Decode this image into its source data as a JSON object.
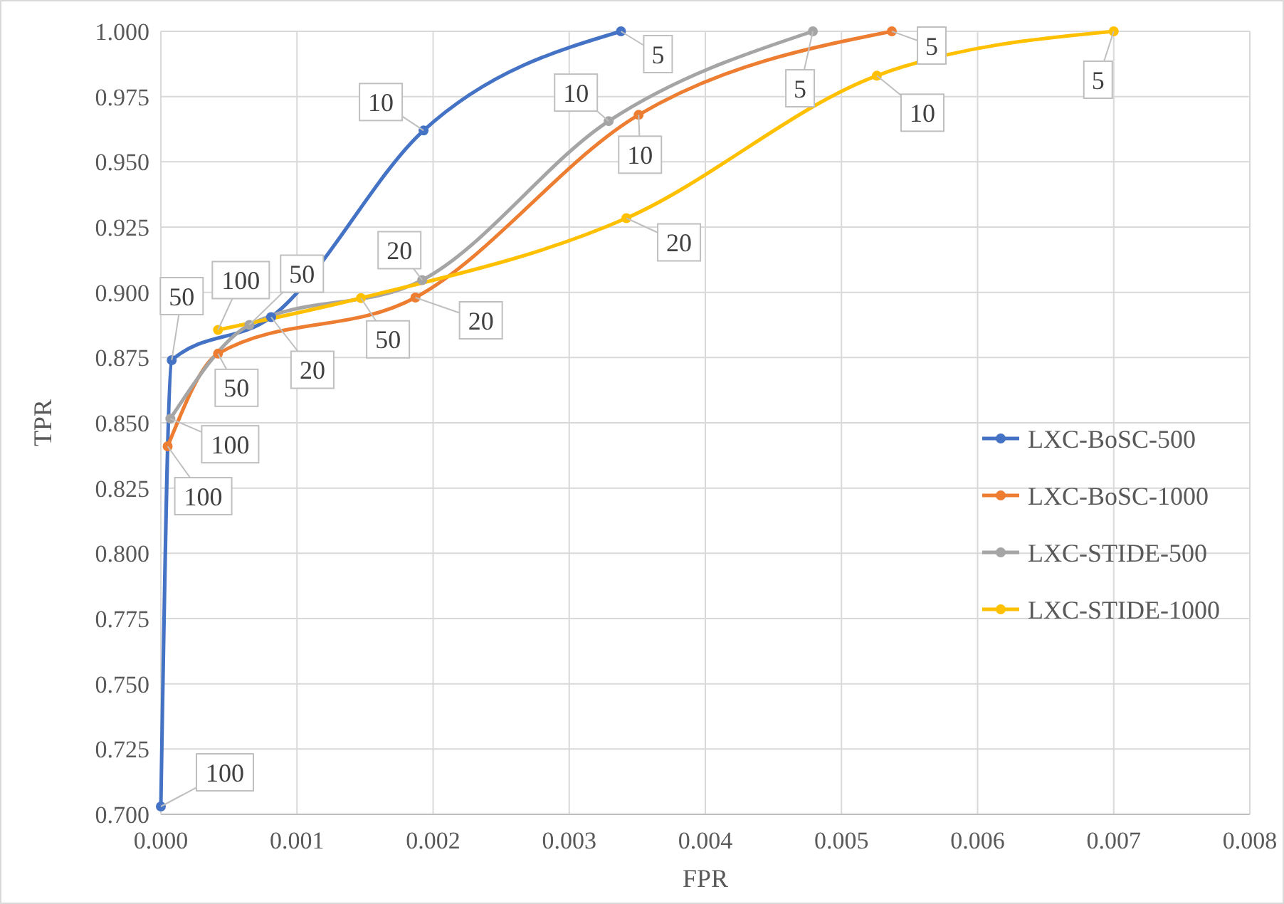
{
  "chart_data": {
    "type": "line",
    "xlabel": "FPR",
    "ylabel": "TPR",
    "xlim": [
      0,
      0.008
    ],
    "xticks": [
      {
        "value": 0,
        "label": "0.000"
      },
      {
        "value": 0.001,
        "label": "0.001"
      },
      {
        "value": 0.002,
        "label": "0.002"
      },
      {
        "value": 0.003,
        "label": "0.003"
      },
      {
        "value": 0.004,
        "label": "0.004"
      },
      {
        "value": 0.005,
        "label": "0.005"
      },
      {
        "value": 0.006,
        "label": "0.006"
      },
      {
        "value": 0.007,
        "label": "0.007"
      },
      {
        "value": 0.008,
        "label": "0.008"
      }
    ],
    "ylim": [
      0.7,
      1
    ],
    "yticks": [
      {
        "value": 0.7,
        "label": "0.700"
      },
      {
        "value": 0.725,
        "label": "0.725"
      },
      {
        "value": 0.75,
        "label": "0.750"
      },
      {
        "value": 0.775,
        "label": "0.775"
      },
      {
        "value": 0.8,
        "label": "0.800"
      },
      {
        "value": 0.825,
        "label": "0.825"
      },
      {
        "value": 0.85,
        "label": "0.850"
      },
      {
        "value": 0.875,
        "label": "0.875"
      },
      {
        "value": 0.9,
        "label": "0.900"
      },
      {
        "value": 0.925,
        "label": "0.925"
      },
      {
        "value": 0.95,
        "label": "0.950"
      },
      {
        "value": 0.975,
        "label": "0.975"
      },
      {
        "value": 1,
        "label": "1.000"
      }
    ],
    "grid": true,
    "legend": "right",
    "marker": "circle",
    "line_style": "solid",
    "series": [
      {
        "name": "LXC-BoSC-500",
        "color": "#4472c4",
        "x": [
          0,
          8e-05,
          0.00081,
          0.00193,
          0.00338
        ],
        "values": [
          0.703,
          0.874,
          0.8905,
          0.962,
          1
        ]
      },
      {
        "name": "LXC-BoSC-1000",
        "color": "#ed7d31",
        "x": [
          5e-05,
          0.00042,
          0.00187,
          0.00351,
          0.00537
        ],
        "values": [
          0.841,
          0.8765,
          0.898,
          0.968,
          1
        ]
      },
      {
        "name": "LXC-STIDE-500",
        "color": "#a5a5a5",
        "x": [
          7e-05,
          0.00065,
          0.00192,
          0.00329,
          0.00479
        ],
        "values": [
          0.8516,
          0.8875,
          0.9047,
          0.9656,
          1
        ]
      },
      {
        "name": "LXC-STIDE-1000",
        "color": "#ffc000",
        "x": [
          0.00042,
          0.00147,
          0.00342,
          0.00526,
          0.007
        ],
        "values": [
          0.8856,
          0.8978,
          0.9284,
          0.983,
          1
        ]
      }
    ],
    "annotations": [
      {
        "text": "100",
        "x": 0,
        "y": 0.703
      },
      {
        "text": "50",
        "x": 8e-05,
        "y": 0.874
      },
      {
        "text": "20",
        "x": 0.00081,
        "y": 0.8905
      },
      {
        "text": "10",
        "x": 0.00193,
        "y": 0.962
      },
      {
        "text": "5",
        "x": 0.00338,
        "y": 1
      },
      {
        "text": "100",
        "x": 5e-05,
        "y": 0.841
      },
      {
        "text": "50",
        "x": 0.00042,
        "y": 0.8765
      },
      {
        "text": "20",
        "x": 0.00187,
        "y": 0.898
      },
      {
        "text": "10",
        "x": 0.00351,
        "y": 0.968
      },
      {
        "text": "5",
        "x": 0.00537,
        "y": 1
      },
      {
        "text": "100",
        "x": 7e-05,
        "y": 0.8516
      },
      {
        "text": "50",
        "x": 0.00065,
        "y": 0.8875
      },
      {
        "text": "20",
        "x": 0.00192,
        "y": 0.9047
      },
      {
        "text": "10",
        "x": 0.00329,
        "y": 0.9656
      },
      {
        "text": "5",
        "x": 0.00479,
        "y": 1
      },
      {
        "text": "100",
        "x": 0.00042,
        "y": 0.8856
      },
      {
        "text": "50",
        "x": 0.00147,
        "y": 0.8978
      },
      {
        "text": "20",
        "x": 0.00342,
        "y": 0.9284
      },
      {
        "text": "10",
        "x": 0.00526,
        "y": 0.983
      },
      {
        "text": "5",
        "x": 0.007,
        "y": 1
      }
    ]
  }
}
